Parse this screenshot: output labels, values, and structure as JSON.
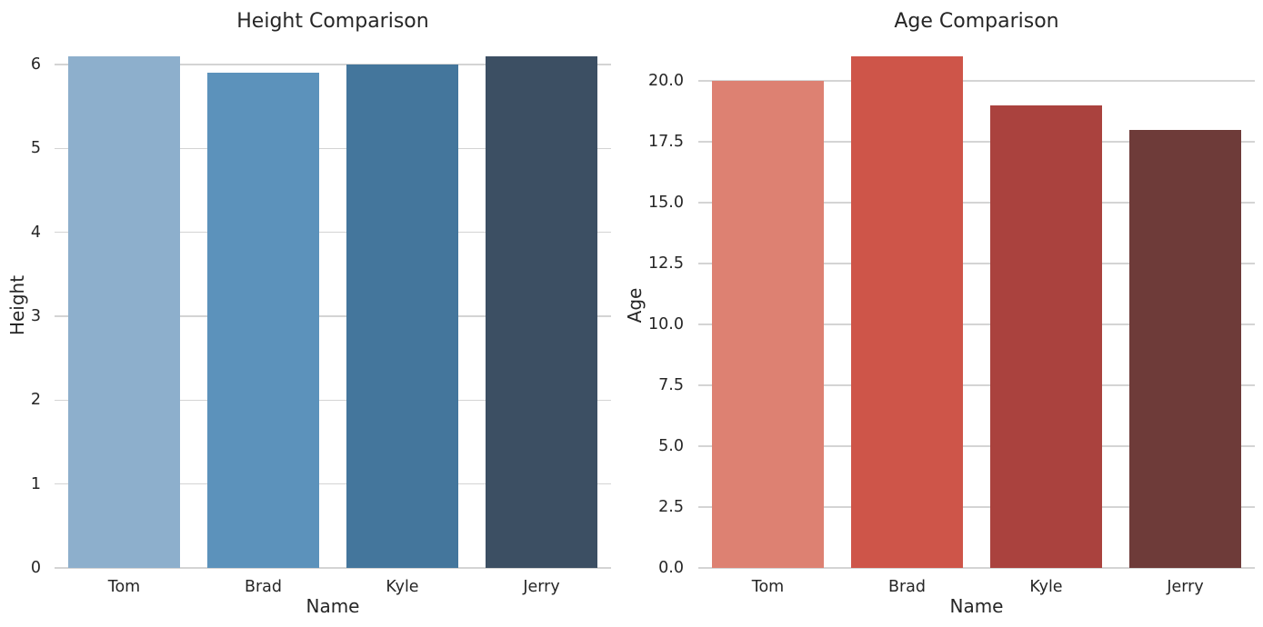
{
  "style": {
    "background": "#ffffff",
    "text_color": "#262626",
    "grid_color": "#d4d4d4"
  },
  "chart_data": [
    {
      "type": "bar",
      "title": "Height Comparison",
      "xlabel": "Name",
      "ylabel": "Height",
      "categories": [
        "Tom",
        "Brad",
        "Kyle",
        "Jerry"
      ],
      "values": [
        6.1,
        5.9,
        6.0,
        6.1
      ],
      "bar_colors": [
        "#8DAFCC",
        "#5C92BB",
        "#44769C",
        "#3C4F63"
      ],
      "yticks": [
        0,
        1,
        2,
        3,
        4,
        5,
        6
      ],
      "ytick_labels": [
        "0",
        "1",
        "2",
        "3",
        "4",
        "5",
        "6"
      ],
      "ylim": [
        0,
        6.26
      ],
      "grid": "horizontal-only",
      "spines": "none",
      "legend": "none"
    },
    {
      "type": "bar",
      "title": "Age Comparison",
      "xlabel": "Name",
      "ylabel": "Age",
      "categories": [
        "Tom",
        "Brad",
        "Kyle",
        "Jerry"
      ],
      "values": [
        20,
        21,
        19,
        18
      ],
      "bar_colors": [
        "#DD8172",
        "#CE5549",
        "#AA423E",
        "#6E3B39"
      ],
      "yticks": [
        0,
        2.5,
        5,
        7.5,
        10,
        12.5,
        15,
        17.5,
        20
      ],
      "ytick_labels": [
        "0.0",
        "2.5",
        "5.0",
        "7.5",
        "10.0",
        "12.5",
        "15.0",
        "17.5",
        "20.0"
      ],
      "ylim": [
        0,
        21.57
      ],
      "grid": "horizontal-only",
      "spines": "none",
      "legend": "none"
    }
  ]
}
